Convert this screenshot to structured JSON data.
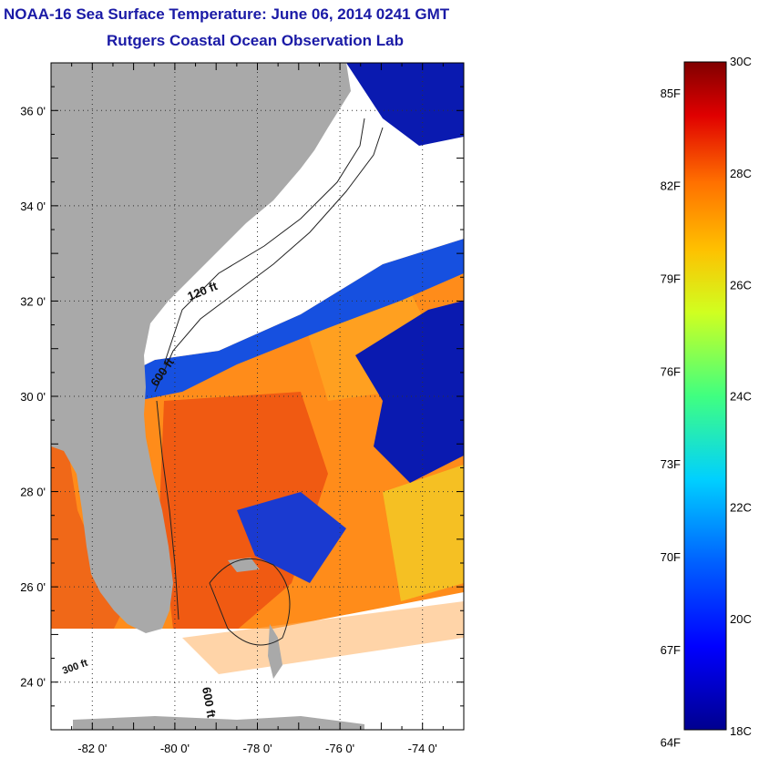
{
  "header": {
    "title": "NOAA-16 Sea Surface Temperature:  June 06, 2014 0241 GMT",
    "subtitle": "Rutgers Coastal Ocean Observation Lab"
  },
  "map": {
    "lat_labels": [
      "36 0'",
      "34 0'",
      "32 0'",
      "30 0'",
      "28 0'",
      "26 0'",
      "24 0'"
    ],
    "lat_values": [
      36,
      34,
      32,
      30,
      28,
      26,
      24
    ],
    "lon_labels": [
      "-82 0'",
      "-80 0'",
      "-78 0'",
      "-76 0'",
      "-74 0'"
    ],
    "lon_values": [
      -82,
      -80,
      -78,
      -76,
      -74
    ],
    "lat_range": [
      23,
      37
    ],
    "lon_range": [
      -83,
      -73
    ],
    "isobaths": [
      {
        "label": "120 ft"
      },
      {
        "label": "600 ft"
      },
      {
        "label": "600 ft"
      },
      {
        "label": "300 ft"
      }
    ],
    "colors": {
      "land": "#a9a9a9",
      "cloud": "#ffffff",
      "grid": "#333333"
    }
  },
  "colorbar": {
    "fahrenheit_labels": [
      "85F",
      "82F",
      "79F",
      "76F",
      "73F",
      "70F",
      "67F",
      "64F"
    ],
    "celsius_labels": [
      "30C",
      "28C",
      "26C",
      "24C",
      "22C",
      "20C",
      "18C"
    ],
    "range_c": [
      18,
      30
    ]
  }
}
